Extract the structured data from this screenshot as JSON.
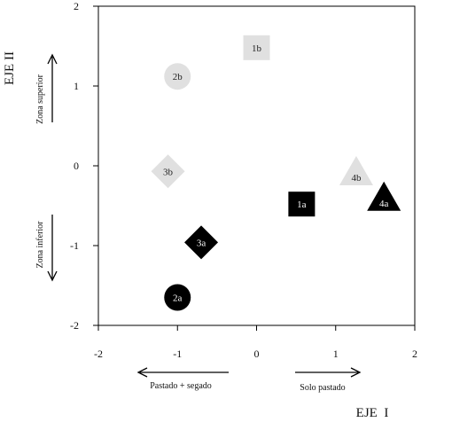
{
  "chart_data": {
    "type": "scatter",
    "title": "",
    "xlabel": "EJE  I",
    "ylabel": "EJE II",
    "xlim": [
      -2,
      2
    ],
    "ylim": [
      -2,
      2
    ],
    "x_ticks": [
      "-2",
      "-1",
      "0",
      "1",
      "2"
    ],
    "y_ticks": [
      "-2",
      "-1",
      "0",
      "1",
      "2"
    ],
    "grid": false,
    "points": [
      {
        "label": "1b",
        "x": 0.0,
        "y": 1.48,
        "shape": "square",
        "color": "#e0e0e0",
        "text_color": "#222222"
      },
      {
        "label": "2b",
        "x": -1.0,
        "y": 1.12,
        "shape": "circle",
        "color": "#e0e0e0",
        "text_color": "#222222"
      },
      {
        "label": "3b",
        "x": -1.12,
        "y": -0.07,
        "shape": "diamond",
        "color": "#e0e0e0",
        "text_color": "#222222"
      },
      {
        "label": "4b",
        "x": 1.26,
        "y": -0.1,
        "shape": "triangle",
        "color": "#e0e0e0",
        "text_color": "#222222"
      },
      {
        "label": "1a",
        "x": 0.57,
        "y": -0.48,
        "shape": "square",
        "color": "#000000",
        "text_color": "#ffffff"
      },
      {
        "label": "2a",
        "x": -1.0,
        "y": -1.65,
        "shape": "circle",
        "color": "#000000",
        "text_color": "#ffffff"
      },
      {
        "label": "3a",
        "x": -0.7,
        "y": -0.96,
        "shape": "diamond",
        "color": "#000000",
        "text_color": "#ffffff"
      },
      {
        "label": "4a",
        "x": 1.61,
        "y": -0.42,
        "shape": "triangle",
        "color": "#000000",
        "text_color": "#ffffff"
      }
    ],
    "annotations": {
      "zona_superior": "Zona superior",
      "zona_inferior": "Zona inferior",
      "pastado_segado": "Pastado + segado",
      "solo_pastado": "Solo pastado"
    }
  }
}
